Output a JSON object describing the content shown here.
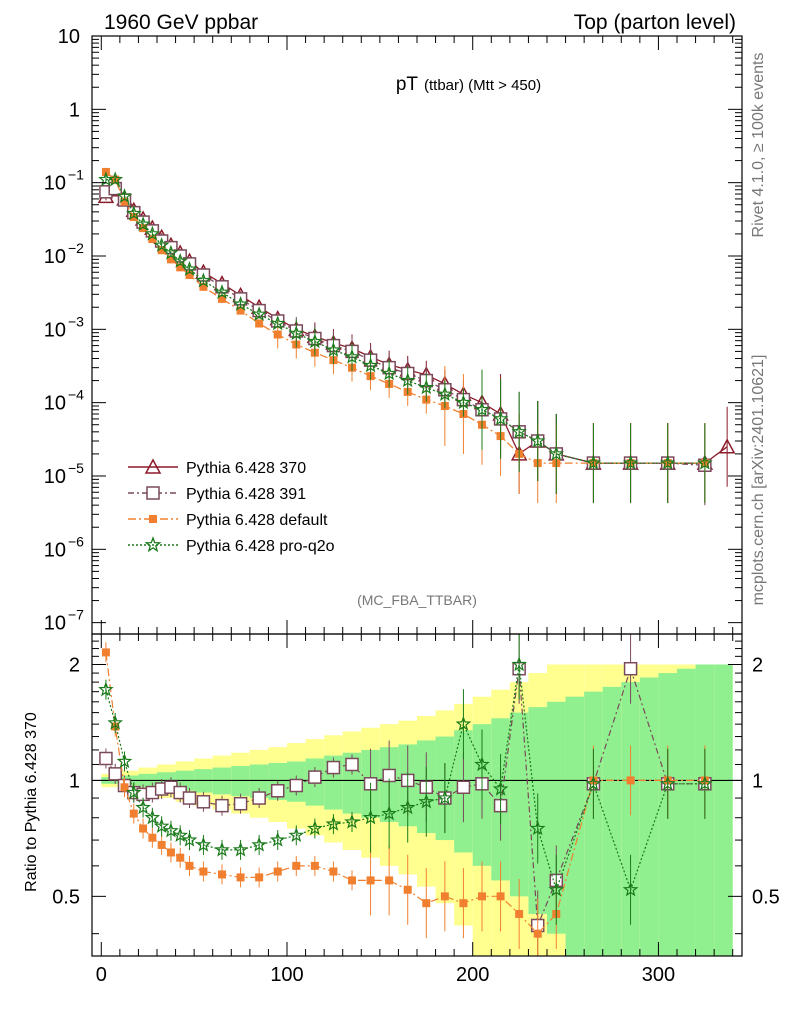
{
  "header": {
    "left": "1960 GeV ppbar",
    "right": "Top (parton level)"
  },
  "side_labels": {
    "rivet": "Rivet 4.1.0, ≥ 100k events",
    "mcplots": "mcplots.cern.ch [arXiv:2401.10621]"
  },
  "chart_data": [
    {
      "type": "scatter",
      "panel": "main",
      "title": "pT",
      "title_sub": "(ttbar) (Mtt > 450)",
      "watermark": "(MC_FBA_TTBAR)",
      "yscale": "log",
      "xlim": [
        -5,
        345
      ],
      "ylim": [
        7e-08,
        10
      ],
      "y_ticks": [
        {
          "v": 10,
          "base": "10",
          "exp": ""
        },
        {
          "v": 1,
          "base": "1",
          "exp": ""
        },
        {
          "v": 0.1,
          "base": "10",
          "exp": "−1"
        },
        {
          "v": 0.01,
          "base": "10",
          "exp": "−2"
        },
        {
          "v": 0.001,
          "base": "10",
          "exp": "−3"
        },
        {
          "v": 0.0001,
          "base": "10",
          "exp": "−4"
        },
        {
          "v": 1e-05,
          "base": "10",
          "exp": "−5"
        },
        {
          "v": 1e-06,
          "base": "10",
          "exp": "−6"
        },
        {
          "v": 1e-07,
          "base": "10",
          "exp": "−7"
        }
      ],
      "legend": [
        {
          "label": "Pythia 6.428 370",
          "color": "#8b1a2a",
          "marker": "triangle-open",
          "dash": ""
        },
        {
          "label": "Pythia 6.428 391",
          "color": "#7a4a5a",
          "marker": "square-open",
          "dash": "6,3,2,3"
        },
        {
          "label": "Pythia 6.428 default",
          "color": "#f08030",
          "marker": "square-filled",
          "dash": "8,3,2,3"
        },
        {
          "label": "Pythia 6.428 pro-q2o",
          "color": "#1a7a1a",
          "marker": "star",
          "dash": "2,2"
        }
      ],
      "series": [
        {
          "name": "Pythia 6.428 370",
          "x": [
            2.5,
            7.5,
            12.5,
            17.5,
            22.5,
            27.5,
            32.5,
            37.5,
            42.5,
            47.5,
            55,
            65,
            75,
            85,
            95,
            105,
            115,
            125,
            135,
            145,
            155,
            165,
            175,
            185,
            195,
            205,
            215,
            225,
            235,
            245,
            265,
            285,
            305,
            325,
            337
          ],
          "y": [
            0.065,
            0.08,
            0.06,
            0.042,
            0.032,
            0.024,
            0.018,
            0.014,
            0.011,
            0.0085,
            0.006,
            0.0042,
            0.0029,
            0.002,
            0.0014,
            0.001,
            0.0008,
            0.00065,
            0.00055,
            0.00042,
            0.00033,
            0.00028,
            0.00024,
            0.00018,
            0.00013,
            0.0001,
            7e-05,
            2e-05,
            3e-05,
            2e-05,
            1.5e-05,
            1.5e-05,
            1.5e-05,
            1.5e-05,
            2.5e-05
          ]
        },
        {
          "name": "Pythia 6.428 391",
          "x": [
            2.5,
            7.5,
            12.5,
            17.5,
            22.5,
            27.5,
            32.5,
            37.5,
            42.5,
            47.5,
            55,
            65,
            75,
            85,
            95,
            105,
            115,
            125,
            135,
            145,
            155,
            165,
            175,
            185,
            195,
            205,
            215,
            225,
            235,
            245,
            265,
            285,
            305,
            325
          ],
          "y": [
            0.075,
            0.083,
            0.058,
            0.039,
            0.029,
            0.022,
            0.016,
            0.013,
            0.01,
            0.0078,
            0.0055,
            0.0038,
            0.0026,
            0.0018,
            0.0013,
            0.00095,
            0.00075,
            0.0006,
            0.0005,
            0.00038,
            0.0003,
            0.00025,
            0.0002,
            0.00015,
            0.00011,
            8e-05,
            6e-05,
            4e-05,
            3e-05,
            2e-05,
            1.5e-05,
            1.5e-05,
            1.5e-05,
            1.4e-05
          ]
        },
        {
          "name": "Pythia 6.428 default",
          "x": [
            2.5,
            7.5,
            12.5,
            17.5,
            22.5,
            27.5,
            32.5,
            37.5,
            42.5,
            47.5,
            55,
            65,
            75,
            85,
            95,
            105,
            115,
            125,
            135,
            145,
            155,
            165,
            175,
            185,
            195,
            205,
            215,
            225,
            235,
            245,
            265,
            285,
            305,
            325
          ],
          "y": [
            0.14,
            0.11,
            0.055,
            0.034,
            0.024,
            0.017,
            0.012,
            0.009,
            0.007,
            0.0055,
            0.0038,
            0.0026,
            0.0018,
            0.0012,
            0.00085,
            0.00062,
            0.00048,
            0.00038,
            0.0003,
            0.00023,
            0.00018,
            0.00014,
            0.00011,
            9e-05,
            7e-05,
            5e-05,
            3.5e-05,
            2e-05,
            1.5e-05,
            1.5e-05,
            1.5e-05,
            1.5e-05,
            1.5e-05,
            1.5e-05
          ]
        },
        {
          "name": "Pythia 6.428 pro-q2o",
          "x": [
            2.5,
            7.5,
            12.5,
            17.5,
            22.5,
            27.5,
            32.5,
            37.5,
            42.5,
            47.5,
            55,
            65,
            75,
            85,
            95,
            105,
            115,
            125,
            135,
            145,
            155,
            165,
            175,
            185,
            195,
            205,
            215,
            225,
            235,
            245,
            265,
            285,
            305,
            325
          ],
          "y": [
            0.11,
            0.11,
            0.065,
            0.038,
            0.027,
            0.02,
            0.014,
            0.011,
            0.0085,
            0.0066,
            0.0046,
            0.0032,
            0.0022,
            0.0016,
            0.0012,
            0.00088,
            0.00068,
            0.00052,
            0.00042,
            0.00032,
            0.00025,
            0.0002,
            0.00016,
            0.00013,
            0.0001,
            8e-05,
            6e-05,
            4e-05,
            3e-05,
            2e-05,
            1.5e-05,
            1.5e-05,
            1.5e-05,
            1.5e-05
          ]
        }
      ]
    },
    {
      "type": "scatter",
      "panel": "ratio",
      "ylabel": "Ratio to Pythia 6.428 370",
      "yscale": "log",
      "xlim": [
        -5,
        345
      ],
      "ylim": [
        0.35,
        2.4
      ],
      "x_ticks": [
        0,
        100,
        200,
        300
      ],
      "y_ticks": [
        0.5,
        1,
        2
      ],
      "reference_line": 1,
      "band_x": [
        5,
        15,
        25,
        35,
        45,
        55,
        65,
        75,
        85,
        95,
        105,
        115,
        125,
        135,
        145,
        155,
        165,
        175,
        185,
        195,
        205,
        215,
        225,
        235,
        245,
        255,
        265,
        275,
        285,
        295,
        305,
        315,
        325,
        335
      ],
      "band_inner": [
        0.02,
        0.03,
        0.04,
        0.05,
        0.06,
        0.07,
        0.08,
        0.09,
        0.1,
        0.11,
        0.12,
        0.14,
        0.16,
        0.18,
        0.2,
        0.22,
        0.24,
        0.27,
        0.3,
        0.35,
        0.4,
        0.45,
        0.5,
        0.55,
        0.6,
        0.65,
        0.7,
        0.75,
        0.8,
        0.85,
        0.9,
        0.95,
        1.0,
        1.0
      ],
      "band_outer": [
        0.04,
        0.06,
        0.08,
        0.1,
        0.12,
        0.14,
        0.16,
        0.18,
        0.2,
        0.22,
        0.25,
        0.28,
        0.31,
        0.34,
        0.37,
        0.4,
        0.43,
        0.47,
        0.52,
        0.58,
        0.65,
        0.72,
        0.8,
        0.9,
        1.0,
        1.0,
        1.0,
        1.0,
        1.0,
        1.0,
        1.0,
        1.0,
        1.0,
        1.0
      ],
      "series": [
        {
          "name": "Pythia 6.428 391",
          "x": [
            2.5,
            7.5,
            12.5,
            17.5,
            22.5,
            27.5,
            32.5,
            37.5,
            42.5,
            47.5,
            55,
            65,
            75,
            85,
            95,
            105,
            115,
            125,
            135,
            145,
            155,
            165,
            175,
            185,
            195,
            205,
            215,
            225,
            235,
            245,
            265,
            285,
            305,
            325
          ],
          "y": [
            1.14,
            1.04,
            0.97,
            0.93,
            0.92,
            0.93,
            0.95,
            0.96,
            0.93,
            0.9,
            0.88,
            0.86,
            0.87,
            0.9,
            0.94,
            0.97,
            1.02,
            1.08,
            1.1,
            0.98,
            1.03,
            1.0,
            0.96,
            0.9,
            0.96,
            0.98,
            0.86,
            1.95,
            0.42,
            0.55,
            0.98,
            1.95,
            0.98,
            0.98
          ]
        },
        {
          "name": "Pythia 6.428 default",
          "x": [
            2.5,
            7.5,
            12.5,
            17.5,
            22.5,
            27.5,
            32.5,
            37.5,
            42.5,
            47.5,
            55,
            65,
            75,
            85,
            95,
            105,
            115,
            125,
            135,
            145,
            155,
            165,
            175,
            185,
            195,
            205,
            215,
            225,
            235,
            245,
            265,
            285,
            305,
            325
          ],
          "y": [
            2.15,
            1.38,
            0.96,
            0.82,
            0.75,
            0.71,
            0.68,
            0.65,
            0.63,
            0.6,
            0.58,
            0.57,
            0.56,
            0.56,
            0.58,
            0.6,
            0.6,
            0.58,
            0.55,
            0.55,
            0.55,
            0.52,
            0.48,
            0.5,
            0.48,
            0.5,
            0.5,
            0.45,
            0.4,
            0.45,
            1.0,
            1.0,
            1.0,
            1.0
          ]
        },
        {
          "name": "Pythia 6.428 pro-q2o",
          "x": [
            2.5,
            7.5,
            12.5,
            17.5,
            22.5,
            27.5,
            32.5,
            37.5,
            42.5,
            47.5,
            55,
            65,
            75,
            85,
            95,
            105,
            115,
            125,
            135,
            145,
            155,
            165,
            175,
            185,
            195,
            205,
            215,
            225,
            235,
            245,
            265,
            285,
            305,
            325
          ],
          "y": [
            1.72,
            1.41,
            1.12,
            0.93,
            0.85,
            0.8,
            0.76,
            0.74,
            0.72,
            0.7,
            0.68,
            0.66,
            0.66,
            0.68,
            0.7,
            0.72,
            0.75,
            0.77,
            0.78,
            0.8,
            0.82,
            0.85,
            0.88,
            0.9,
            1.4,
            1.1,
            0.95,
            2.0,
            0.75,
            0.52,
            0.98,
            0.52,
            0.98,
            0.98
          ]
        }
      ]
    }
  ]
}
